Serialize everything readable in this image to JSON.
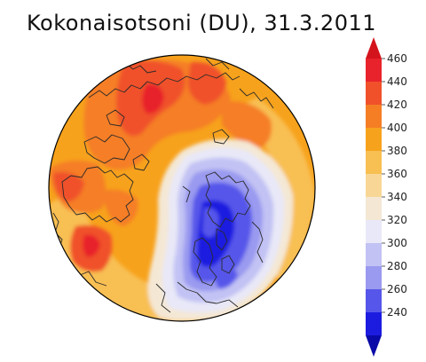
{
  "title": "Kokonaisotsoni (DU), 31.3.2011",
  "colorbar": {
    "ticks": [
      "460",
      "440",
      "420",
      "400",
      "380",
      "360",
      "340",
      "320",
      "300",
      "280",
      "260",
      "240"
    ],
    "levels": [
      {
        "from": 440,
        "to": 460,
        "color": "#e8232b"
      },
      {
        "from": 420,
        "to": 440,
        "color": "#f0512b"
      },
      {
        "from": 400,
        "to": 420,
        "color": "#f57e25"
      },
      {
        "from": 380,
        "to": 400,
        "color": "#f7a21c"
      },
      {
        "from": 360,
        "to": 380,
        "color": "#f8bf52"
      },
      {
        "from": 340,
        "to": 360,
        "color": "#f8d796"
      },
      {
        "from": 320,
        "to": 340,
        "color": "#f4e8d5"
      },
      {
        "from": 300,
        "to": 320,
        "color": "#e8e8f8"
      },
      {
        "from": 280,
        "to": 300,
        "color": "#c2c2f4"
      },
      {
        "from": 260,
        "to": 280,
        "color": "#9a9af0"
      },
      {
        "from": 240,
        "to": 260,
        "color": "#5656ea"
      },
      {
        "from": 220,
        "to": 240,
        "color": "#1c1ce0"
      }
    ],
    "top_arrow_color": "#d4141c",
    "bottom_arrow_color": "#0a0aa8"
  },
  "colors": {
    "ozone_high": "#f57e25",
    "ozone_low": "#5656ea",
    "coastline": "#2a2a2a"
  }
}
